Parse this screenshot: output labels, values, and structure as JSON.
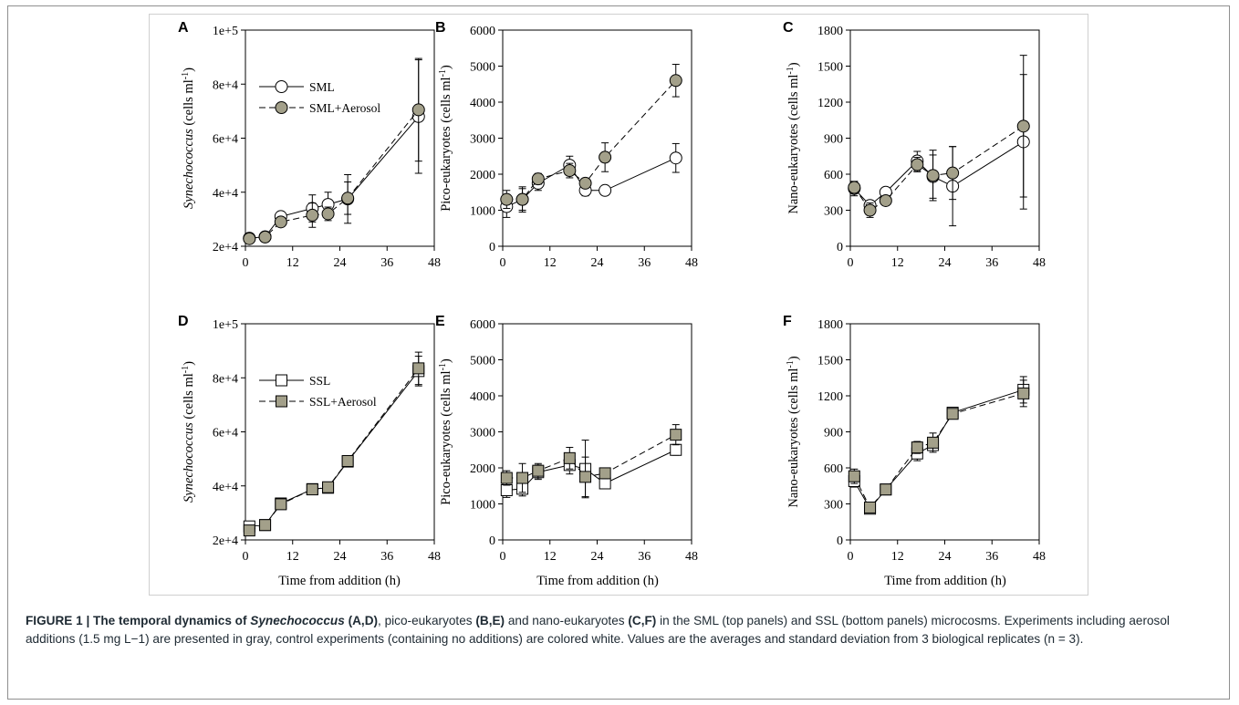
{
  "x_axis_label": "Time from addition (h)",
  "caption": {
    "prefix": "FIGURE 1 | The temporal dynamics of ",
    "taxon1": "Synechococcus",
    "seg1": " (A,D)",
    "seg2": ", pico-eukaryotes ",
    "seg3": "(B,E)",
    "seg4": " and nano-eukaryotes ",
    "seg5": "(C,F)",
    "body": " in the SML (top panels) and SSL (bottom panels) microcosms. Experiments including aerosol additions (1.5 mg L−1) are presented in gray, control experiments (containing no additions) are colored white. Values are the averages and standard deviation from 3 biological replicates (n = 3)."
  },
  "colors": {
    "gray_marker": "#a3a08a",
    "white_marker": "#ffffff",
    "stroke": "#000000",
    "frame": "#8f8f8f"
  },
  "chart_data": [
    {
      "panel": "A",
      "type": "line",
      "ylabel_italic": "Synechococcus",
      "ylabel_rest": " (cells ml",
      "ylabel_sup": "-1",
      "ylabel_close": ")",
      "xlim": [
        0,
        48
      ],
      "xticks": [
        "0",
        "12",
        "24",
        "36",
        "48"
      ],
      "xtick_values": [
        0,
        12,
        24,
        36,
        48
      ],
      "ylim": [
        20000,
        100000
      ],
      "yticks": [
        "2e+4",
        "4e+4",
        "6e+4",
        "8e+4",
        "1e+5"
      ],
      "ytick_values": [
        20000,
        40000,
        60000,
        80000,
        100000
      ],
      "legend": [
        "SML",
        "SML+Aerosol"
      ],
      "marker": "circle",
      "series": [
        {
          "name": "SML",
          "fill": "white",
          "dashed": false,
          "x": [
            1,
            5,
            9,
            17,
            21,
            26,
            44
          ],
          "y": [
            23000,
            23500,
            31000,
            34000,
            35500,
            37500,
            68000
          ],
          "err": [
            500,
            600,
            1500,
            5000,
            4500,
            9000,
            21000
          ]
        },
        {
          "name": "SML+Aerosol",
          "fill": "gray",
          "dashed": true,
          "x": [
            1,
            5,
            9,
            17,
            21,
            26,
            44
          ],
          "y": [
            22800,
            23400,
            29000,
            31500,
            32000,
            37800,
            70500
          ],
          "err": [
            500,
            600,
            1000,
            4500,
            2500,
            6000,
            19000
          ]
        }
      ]
    },
    {
      "panel": "B",
      "type": "line",
      "ylabel_italic": "",
      "ylabel_rest": "Pico-eukaryotes (cells ml",
      "ylabel_sup": "-1",
      "ylabel_close": ")",
      "xlim": [
        0,
        48
      ],
      "xticks": [
        "0",
        "12",
        "24",
        "36",
        "48"
      ],
      "xtick_values": [
        0,
        12,
        24,
        36,
        48
      ],
      "ylim": [
        0,
        6000
      ],
      "yticks": [
        "0",
        "1000",
        "2000",
        "3000",
        "4000",
        "5000",
        "6000"
      ],
      "ytick_values": [
        0,
        1000,
        2000,
        3000,
        4000,
        5000,
        6000
      ],
      "marker": "circle",
      "series": [
        {
          "name": "SML",
          "fill": "white",
          "dashed": false,
          "x": [
            1,
            5,
            9,
            17,
            21,
            26,
            44
          ],
          "y": [
            1100,
            1300,
            1750,
            2250,
            1550,
            1550,
            2450
          ],
          "err": [
            300,
            350,
            200,
            250,
            150,
            0,
            400
          ]
        },
        {
          "name": "SML+Aerosol",
          "fill": "gray",
          "dashed": true,
          "x": [
            1,
            5,
            9,
            17,
            21,
            26,
            44
          ],
          "y": [
            1300,
            1300,
            1870,
            2100,
            1750,
            2470,
            4600
          ],
          "err": [
            250,
            300,
            150,
            200,
            100,
            400,
            450
          ]
        }
      ]
    },
    {
      "panel": "C",
      "type": "line",
      "ylabel_italic": "",
      "ylabel_rest": "Nano-eukaryotes (cells ml",
      "ylabel_sup": "-1",
      "ylabel_close": ")",
      "xlim": [
        0,
        48
      ],
      "xticks": [
        "0",
        "12",
        "24",
        "36",
        "48"
      ],
      "xtick_values": [
        0,
        12,
        24,
        36,
        48
      ],
      "ylim": [
        0,
        1800
      ],
      "yticks": [
        "0",
        "300",
        "600",
        "900",
        "1200",
        "1500",
        "1800"
      ],
      "ytick_values": [
        0,
        300,
        600,
        900,
        1200,
        1500,
        1800
      ],
      "marker": "circle",
      "series": [
        {
          "name": "SML",
          "fill": "white",
          "dashed": false,
          "x": [
            1,
            5,
            9,
            17,
            21,
            26,
            44
          ],
          "y": [
            480,
            340,
            450,
            710,
            580,
            500,
            870
          ],
          "err": [
            60,
            40,
            30,
            80,
            180,
            330,
            560
          ]
        },
        {
          "name": "SML+Aerosol",
          "fill": "gray",
          "dashed": true,
          "x": [
            1,
            5,
            9,
            17,
            21,
            26,
            44
          ],
          "y": [
            490,
            300,
            380,
            680,
            590,
            610,
            1000
          ],
          "err": [
            50,
            60,
            40,
            60,
            210,
            220,
            590
          ]
        }
      ]
    },
    {
      "panel": "D",
      "type": "line",
      "ylabel_italic": "Synechococcus",
      "ylabel_rest": " (cells ml",
      "ylabel_sup": "-1",
      "ylabel_close": ")",
      "xlim": [
        0,
        48
      ],
      "xticks": [
        "0",
        "12",
        "24",
        "36",
        "48"
      ],
      "xtick_values": [
        0,
        12,
        24,
        36,
        48
      ],
      "ylim": [
        20000,
        100000
      ],
      "yticks": [
        "2e+4",
        "4e+4",
        "6e+4",
        "8e+4",
        "1e+5"
      ],
      "ytick_values": [
        20000,
        40000,
        60000,
        80000,
        100000
      ],
      "legend": [
        "SSL",
        "SSL+Aerosol"
      ],
      "marker": "square",
      "series": [
        {
          "name": "SSL",
          "fill": "white",
          "dashed": false,
          "x": [
            1,
            5,
            9,
            17,
            21,
            26,
            44
          ],
          "y": [
            25000,
            25500,
            33500,
            38800,
            39300,
            49000,
            82500
          ],
          "err": [
            700,
            600,
            800,
            700,
            800,
            900,
            5500
          ]
        },
        {
          "name": "SSL+Aerosol",
          "fill": "gray",
          "dashed": true,
          "x": [
            1,
            5,
            9,
            17,
            21,
            26,
            44
          ],
          "y": [
            23500,
            25500,
            33200,
            38700,
            39500,
            49200,
            83500
          ],
          "err": [
            700,
            700,
            800,
            700,
            900,
            900,
            6000
          ]
        }
      ]
    },
    {
      "panel": "E",
      "type": "line",
      "ylabel_italic": "",
      "ylabel_rest": "Pico-eukaryotes (cells ml",
      "ylabel_sup": "-1",
      "ylabel_close": ")",
      "xlim": [
        0,
        48
      ],
      "xticks": [
        "0",
        "12",
        "24",
        "36",
        "48"
      ],
      "xtick_values": [
        0,
        12,
        24,
        36,
        48
      ],
      "ylim": [
        0,
        6000
      ],
      "yticks": [
        "0",
        "1000",
        "2000",
        "3000",
        "4000",
        "5000",
        "6000"
      ],
      "ytick_values": [
        0,
        1000,
        2000,
        3000,
        4000,
        5000,
        6000
      ],
      "marker": "square",
      "series": [
        {
          "name": "SSL",
          "fill": "white",
          "dashed": false,
          "x": [
            1,
            5,
            9,
            17,
            21,
            26,
            44
          ],
          "y": [
            1380,
            1420,
            1880,
            2080,
            1970,
            1570,
            2500
          ],
          "err": [
            200,
            200,
            200,
            250,
            800,
            100,
            150
          ]
        },
        {
          "name": "SSL+Aerosol",
          "fill": "gray",
          "dashed": true,
          "x": [
            1,
            5,
            9,
            17,
            21,
            26,
            44
          ],
          "y": [
            1720,
            1720,
            1920,
            2270,
            1750,
            1850,
            2920
          ],
          "err": [
            200,
            400,
            200,
            300,
            550,
            150,
            280
          ]
        }
      ]
    },
    {
      "panel": "F",
      "type": "line",
      "ylabel_italic": "",
      "ylabel_rest": "Nano-eukaryotes (cells ml",
      "ylabel_sup": "-1",
      "ylabel_close": ")",
      "xlim": [
        0,
        48
      ],
      "xticks": [
        "0",
        "12",
        "24",
        "36",
        "48"
      ],
      "xtick_values": [
        0,
        12,
        24,
        36,
        48
      ],
      "ylim": [
        0,
        1800
      ],
      "yticks": [
        "0",
        "300",
        "600",
        "900",
        "1200",
        "1500",
        "1800"
      ],
      "ytick_values": [
        0,
        300,
        600,
        900,
        1200,
        1500,
        1800
      ],
      "marker": "square",
      "series": [
        {
          "name": "SSL",
          "fill": "white",
          "dashed": false,
          "x": [
            1,
            5,
            9,
            17,
            21,
            26,
            44
          ],
          "y": [
            490,
            260,
            420,
            720,
            790,
            1060,
            1250
          ],
          "err": [
            50,
            30,
            20,
            60,
            40,
            20,
            110
          ]
        },
        {
          "name": "SSL+Aerosol",
          "fill": "gray",
          "dashed": true,
          "x": [
            1,
            5,
            9,
            17,
            21,
            26,
            44
          ],
          "y": [
            530,
            270,
            420,
            770,
            810,
            1050,
            1220
          ],
          "err": [
            60,
            40,
            20,
            50,
            80,
            30,
            110
          ]
        }
      ]
    }
  ]
}
